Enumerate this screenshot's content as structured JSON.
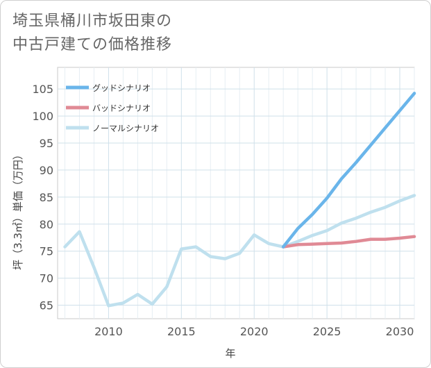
{
  "title_line1": "埼玉県桶川市坂田東の",
  "title_line2": "中古戸建ての価格推移",
  "chart_data": {
    "type": "line",
    "title": "埼玉県桶川市坂田東の中古戸建ての価格推移",
    "xlabel": "年",
    "ylabel": "坪（3.3㎡）単価（万円）",
    "xlim": [
      2006.5,
      2031
    ],
    "ylim": [
      62.5,
      109
    ],
    "x_ticks": [
      2010,
      2015,
      2020,
      2025,
      2030
    ],
    "y_ticks": [
      65,
      70,
      75,
      80,
      85,
      90,
      95,
      100,
      105
    ],
    "grid": true,
    "legend_position": "top-left",
    "series": [
      {
        "name": "グッドシナリオ",
        "color": "#6ab5ea",
        "x": [
          2022,
          2023,
          2024,
          2025,
          2026,
          2027,
          2028,
          2029,
          2030,
          2031
        ],
        "values": [
          75.8,
          79.2,
          81.8,
          84.8,
          88.4,
          91.4,
          94.6,
          97.8,
          101.0,
          104.2
        ]
      },
      {
        "name": "バッドシナリオ",
        "color": "#e08a95",
        "x": [
          2022,
          2023,
          2024,
          2025,
          2026,
          2027,
          2028,
          2029,
          2030,
          2031
        ],
        "values": [
          75.8,
          76.2,
          76.3,
          76.4,
          76.5,
          76.8,
          77.2,
          77.2,
          77.4,
          77.7
        ]
      },
      {
        "name": "ノーマルシナリオ",
        "color": "#bfe0ee",
        "x": [
          2007,
          2008,
          2009,
          2010,
          2011,
          2012,
          2013,
          2014,
          2015,
          2016,
          2017,
          2018,
          2019,
          2020,
          2021,
          2022,
          2023,
          2024,
          2025,
          2026,
          2027,
          2028,
          2029,
          2030,
          2031
        ],
        "values": [
          75.8,
          78.6,
          72.0,
          64.9,
          65.4,
          67.0,
          65.2,
          68.4,
          75.4,
          75.8,
          74.0,
          73.6,
          74.6,
          78.0,
          76.4,
          75.8,
          76.8,
          77.9,
          78.8,
          80.2,
          81.1,
          82.2,
          83.1,
          84.3,
          85.3
        ]
      }
    ]
  }
}
